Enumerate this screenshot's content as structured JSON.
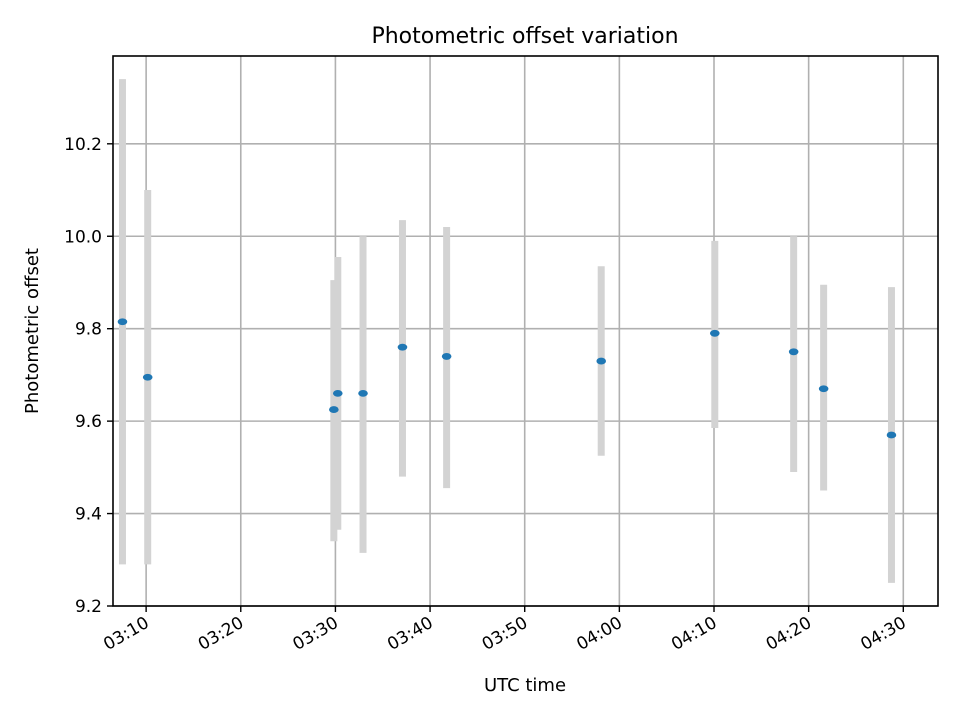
{
  "chart_data": {
    "type": "scatter",
    "title": "Photometric offset variation",
    "xlabel": "UTC time",
    "ylabel": "Photometric offset",
    "grid": true,
    "x_ticks": [
      "03:10",
      "03:20",
      "03:30",
      "03:40",
      "03:50",
      "04:00",
      "04:10",
      "04:20",
      "04:30"
    ],
    "y_ticks": [
      "9.2",
      "9.4",
      "9.6",
      "9.8",
      "10.0",
      "10.2"
    ],
    "xlim": [
      "03:06:30",
      "04:33:40"
    ],
    "ylim": [
      9.2,
      10.39
    ],
    "colors": {
      "point": "#1f77b4",
      "errorbar": "#d3d3d3",
      "grid": "#b0b0b0"
    },
    "series": [
      {
        "points": [
          {
            "x": "03:07:30",
            "y": 9.815,
            "ylow": 9.29,
            "yhigh": 10.34
          },
          {
            "x": "03:10:10",
            "y": 9.695,
            "ylow": 9.29,
            "yhigh": 10.1
          },
          {
            "x": "03:29:50",
            "y": 9.625,
            "ylow": 9.34,
            "yhigh": 9.905
          },
          {
            "x": "03:30:15",
            "y": 9.66,
            "ylow": 9.365,
            "yhigh": 9.955
          },
          {
            "x": "03:32:55",
            "y": 9.66,
            "ylow": 9.315,
            "yhigh": 10.0
          },
          {
            "x": "03:37:05",
            "y": 9.76,
            "ylow": 9.48,
            "yhigh": 10.035
          },
          {
            "x": "03:41:45",
            "y": 9.74,
            "ylow": 9.455,
            "yhigh": 10.02
          },
          {
            "x": "03:58:05",
            "y": 9.73,
            "ylow": 9.525,
            "yhigh": 9.935
          },
          {
            "x": "04:10:05",
            "y": 9.79,
            "ylow": 9.585,
            "yhigh": 9.99
          },
          {
            "x": "04:18:25",
            "y": 9.75,
            "ylow": 9.49,
            "yhigh": 10.0
          },
          {
            "x": "04:21:35",
            "y": 9.67,
            "ylow": 9.45,
            "yhigh": 9.895
          },
          {
            "x": "04:28:45",
            "y": 9.57,
            "ylow": 9.25,
            "yhigh": 9.89
          }
        ]
      }
    ]
  }
}
